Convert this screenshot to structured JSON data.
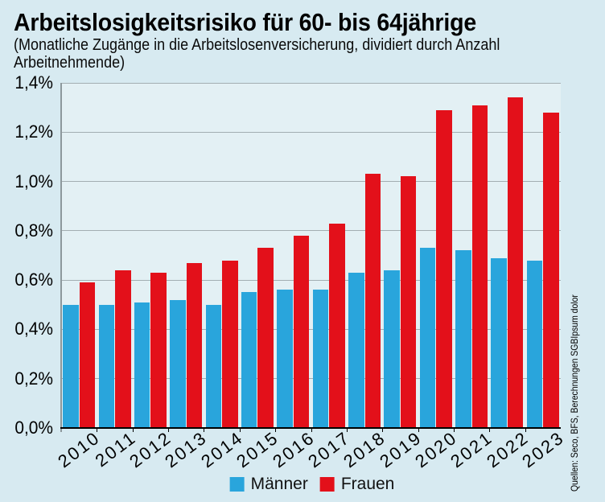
{
  "title": "Arbeitslosigkeitsrisiko für 60- bis 64jährige",
  "subtitle_line1": "(Monatliche Zugänge in die Arbeitslosenversicherung, dividiert durch Anzahl",
  "subtitle_line2": "Arbeitnehmende)",
  "source": "Quellen: Seco, BFS, Berechnungen SGBIpsum dolor",
  "colors": {
    "background": "#d7eaf1",
    "plot_background": "#e3f0f4",
    "grid": "#a3aeb2",
    "axis": "#8d989c",
    "baseline": "#000000",
    "maenner": "#29a5dc",
    "frauen": "#e3101a"
  },
  "chart_data": {
    "type": "bar",
    "title": "Arbeitslosigkeitsrisiko für 60- bis 64jährige",
    "subtitle": "(Monatliche Zugänge in die Arbeitslosenversicherung, dividiert durch Anzahl Arbeitnehmende)",
    "categories": [
      "2010",
      "2011",
      "2012",
      "2013",
      "2014",
      "2015",
      "2016",
      "2017",
      "2018",
      "2019",
      "2020",
      "2021",
      "2022",
      "2023"
    ],
    "series": [
      {
        "name": "Männer",
        "color": "#29a5dc",
        "values": [
          0.5,
          0.5,
          0.51,
          0.52,
          0.5,
          0.55,
          0.56,
          0.56,
          0.63,
          0.64,
          0.73,
          0.72,
          0.69,
          0.68
        ]
      },
      {
        "name": "Frauen",
        "color": "#e3101a",
        "values": [
          0.59,
          0.64,
          0.63,
          0.67,
          0.68,
          0.73,
          0.78,
          0.83,
          1.03,
          1.02,
          1.29,
          1.31,
          1.34,
          1.28
        ]
      }
    ],
    "ylim": [
      0,
      1.4
    ],
    "ytick_step": 0.2,
    "yticks": [
      "0,0%",
      "0,2%",
      "0,4%",
      "0,6%",
      "0,8%",
      "1,0%",
      "1,2%",
      "1,4%"
    ],
    "grid": true,
    "legend_position": "bottom-center",
    "unit": "%"
  }
}
